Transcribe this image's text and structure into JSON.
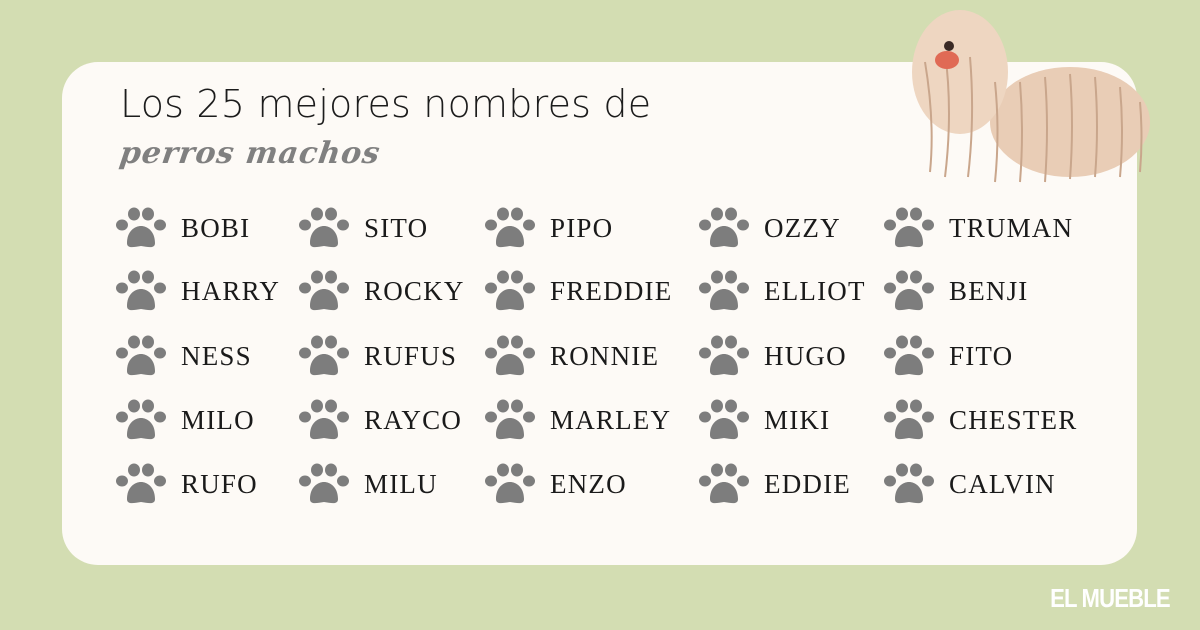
{
  "header": {
    "title": "Los 25 mejores nombres de",
    "subtitle": "perros machos"
  },
  "icon": "paw-print-icon",
  "colors": {
    "background": "#d3ddb2",
    "card": "#fdfaf6",
    "paw": "#7d7d7d",
    "subtitle": "#808080"
  },
  "columns": [
    [
      "BOBI",
      "HARRY",
      "NESS",
      "MILO",
      "RUFO"
    ],
    [
      "SITO",
      "ROCKY",
      "RUFUS",
      "RAYCO",
      "MILU"
    ],
    [
      "PIPO",
      "FREDDIE",
      "RONNIE",
      "MARLEY",
      "ENZO"
    ],
    [
      "OZZY",
      "ELLIOT",
      "HUGO",
      "MIKI",
      "EDDIE"
    ],
    [
      "TRUMAN",
      "BENJI",
      "FITO",
      "CHESTER",
      "CALVIN"
    ]
  ],
  "brand": {
    "logo": "EL MUEBLE"
  }
}
